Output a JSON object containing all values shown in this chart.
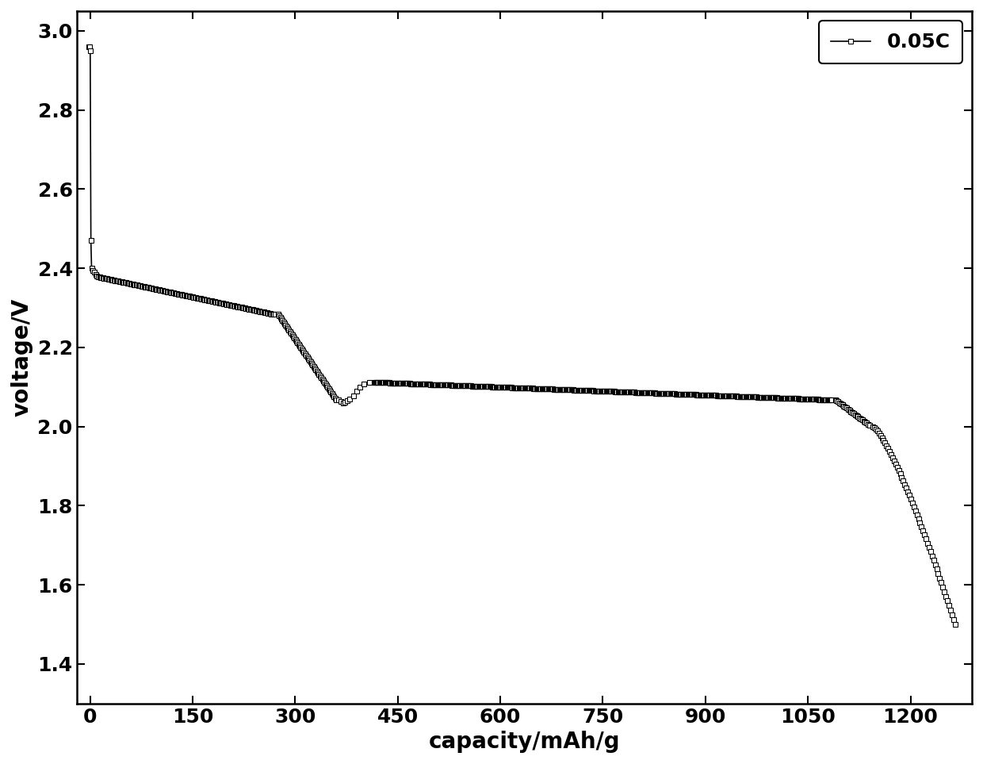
{
  "title": "",
  "xlabel": "capacity/mAh/g",
  "ylabel": "voltage/V",
  "xlabel_fontsize": 20,
  "ylabel_fontsize": 20,
  "tick_fontsize": 18,
  "legend_label": "0.05C",
  "legend_fontsize": 18,
  "line_color": "#000000",
  "marker": "s",
  "markersize": 5,
  "markerfacecolor": "#ffffff",
  "markeredgecolor": "#000000",
  "linewidth": 1.2,
  "xlim": [
    -20,
    1290
  ],
  "ylim": [
    1.3,
    3.05
  ],
  "xticks": [
    0,
    150,
    300,
    450,
    600,
    750,
    900,
    1050,
    1200
  ],
  "yticks": [
    1.4,
    1.6,
    1.8,
    2.0,
    2.2,
    2.4,
    2.6,
    2.8,
    3.0
  ],
  "background_color": "#ffffff",
  "grid": false,
  "spine_linewidth": 1.8
}
